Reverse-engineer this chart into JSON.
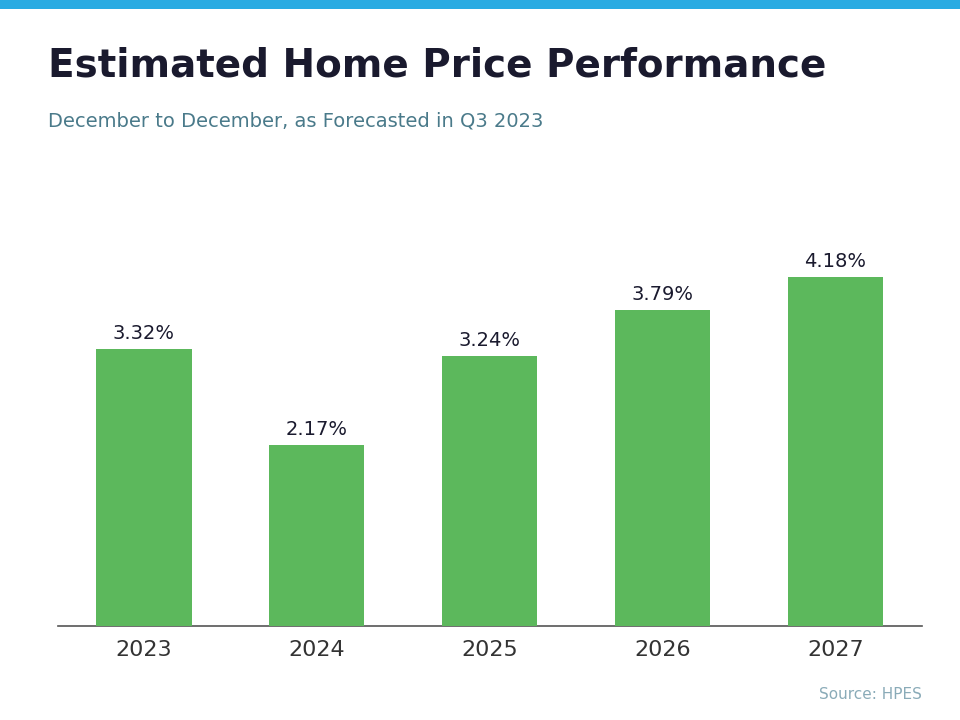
{
  "title": "Estimated Home Price Performance",
  "subtitle": "December to December, as Forecasted in Q3 2023",
  "source": "Source: HPES",
  "categories": [
    "2023",
    "2024",
    "2025",
    "2026",
    "2027"
  ],
  "values": [
    3.32,
    2.17,
    3.24,
    3.79,
    4.18
  ],
  "labels": [
    "3.32%",
    "2.17%",
    "3.24%",
    "3.79%",
    "4.18%"
  ],
  "bar_color": "#5cb85c",
  "title_color": "#1a1a2e",
  "subtitle_color": "#4a7a8a",
  "source_color": "#8aabb8",
  "xlabel_color": "#333333",
  "background_color": "#ffffff",
  "top_bar_color": "#29abe2",
  "title_fontsize": 28,
  "subtitle_fontsize": 14,
  "label_fontsize": 14,
  "xlabel_fontsize": 16,
  "source_fontsize": 11,
  "ylim": [
    0,
    5.0
  ],
  "top_bar_height": 0.012
}
